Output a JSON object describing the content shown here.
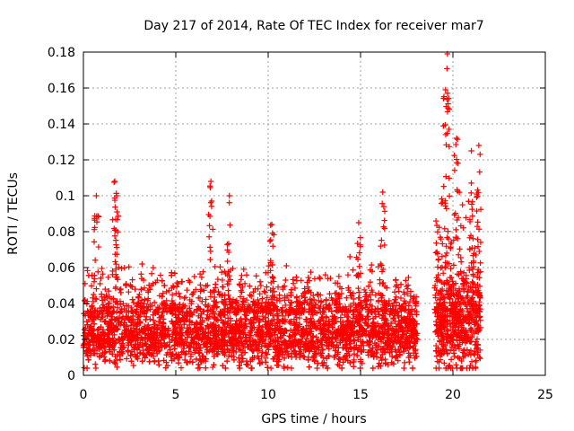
{
  "chart_data": {
    "type": "scatter",
    "title": "Day 217 of 2014, Rate Of TEC Index for receiver mar7",
    "xlabel": "GPS time / hours",
    "ylabel": "ROTI / TECUs",
    "xlim": [
      0,
      25
    ],
    "ylim": [
      0,
      0.18
    ],
    "xticks": [
      "0",
      "5",
      "10",
      "15",
      "20",
      "25"
    ],
    "yticks": [
      "0",
      "0.02",
      "0.04",
      "0.06",
      "0.08",
      "0.1",
      "0.12",
      "0.14",
      "0.16",
      "0.18"
    ],
    "grid": true,
    "marker": "+",
    "color": "#ff0000",
    "series": [
      {
        "segments": [
          {
            "x": [
              0.0,
              18.1
            ],
            "base": 0.022,
            "spread": 0.018
          },
          {
            "x": [
              19.0,
              21.5
            ],
            "base": 0.03,
            "spread": 0.03
          }
        ],
        "peaks": [
          {
            "x": 0.7,
            "y": 0.1
          },
          {
            "x": 1.7,
            "y": 0.108
          },
          {
            "x": 1.8,
            "y": 0.1
          },
          {
            "x": 6.9,
            "y": 0.108
          },
          {
            "x": 7.9,
            "y": 0.1
          },
          {
            "x": 10.2,
            "y": 0.084
          },
          {
            "x": 14.9,
            "y": 0.085
          },
          {
            "x": 16.2,
            "y": 0.102
          },
          {
            "x": 19.7,
            "y": 0.179
          },
          {
            "x": 19.6,
            "y": 0.159
          },
          {
            "x": 20.2,
            "y": 0.132
          },
          {
            "x": 21.4,
            "y": 0.128
          },
          {
            "x": 21.0,
            "y": 0.125
          }
        ]
      }
    ]
  }
}
